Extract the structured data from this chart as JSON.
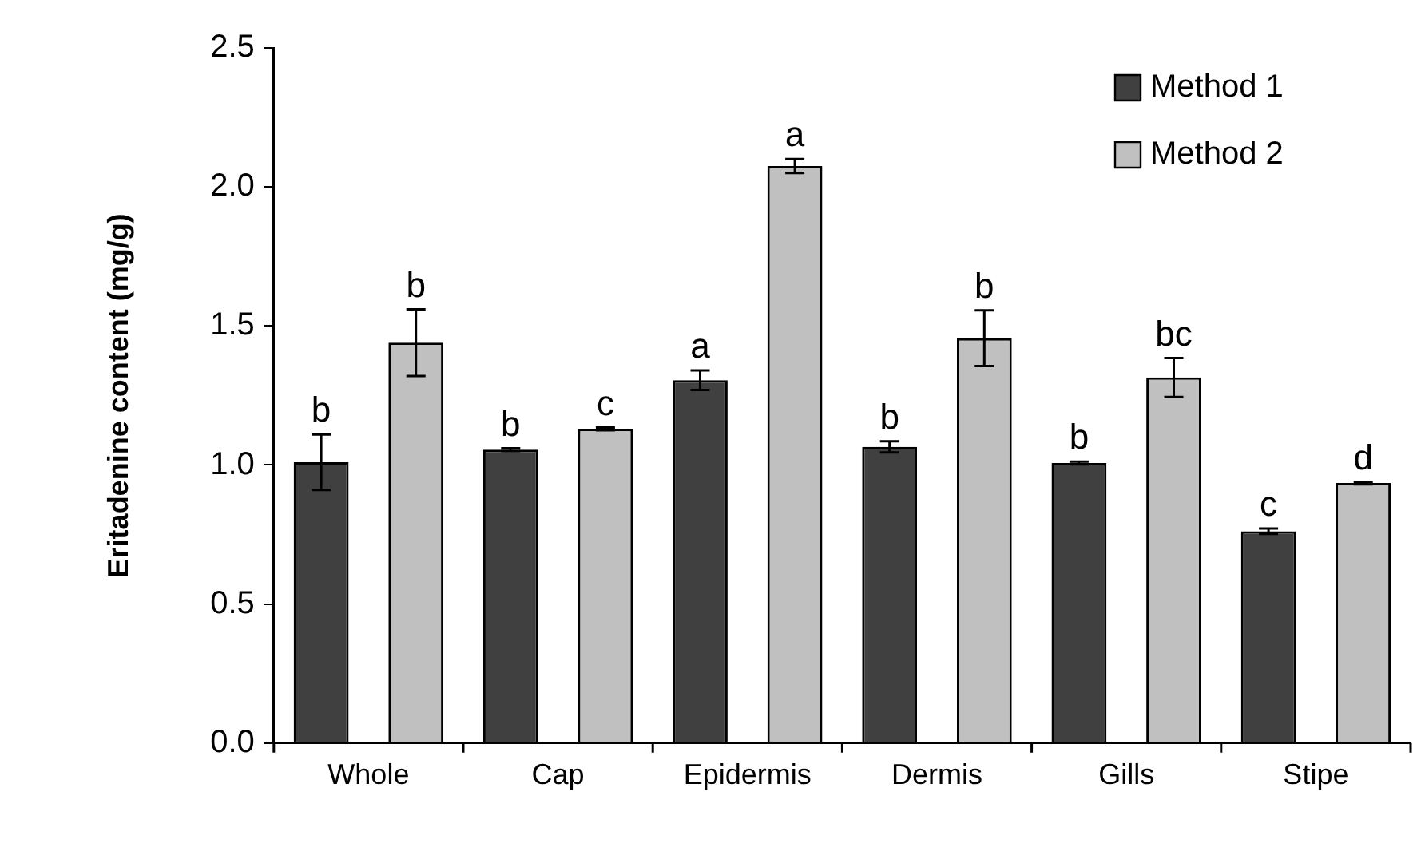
{
  "chart_data": {
    "type": "bar",
    "ylabel": "Eritadenine content (mg/g)",
    "categories": [
      "Whole",
      "Cap",
      "Epidermis",
      "Dermis",
      "Gills",
      "Stipe"
    ],
    "series": [
      {
        "name": "Method 1",
        "color": "#404040",
        "values": [
          1.01,
          1.055,
          1.305,
          1.065,
          1.007,
          0.762
        ],
        "errors": [
          0.1,
          0.005,
          0.035,
          0.02,
          0.005,
          0.01
        ]
      },
      {
        "name": "Method 2",
        "color": "#c0c0c0",
        "values": [
          1.44,
          1.13,
          2.075,
          1.456,
          1.315,
          0.935
        ],
        "errors": [
          0.12,
          0.005,
          0.025,
          0.1,
          0.07,
          0.005
        ]
      }
    ],
    "ylim": [
      0,
      2.5
    ],
    "yticks": [
      {
        "value": 0,
        "label": "0.0"
      },
      {
        "value": 0.5,
        "label": "0.5"
      },
      {
        "value": 1,
        "label": "1.0"
      },
      {
        "value": 1.5,
        "label": "1.5"
      },
      {
        "value": 2,
        "label": "2.0"
      },
      {
        "value": 2.5,
        "label": "2.5"
      }
    ],
    "grid": false,
    "legend": "top right",
    "annotations": [
      "b",
      "b",
      "b",
      "c",
      "a",
      "a",
      "b",
      "b",
      "b",
      "bc",
      "c",
      "d"
    ]
  }
}
